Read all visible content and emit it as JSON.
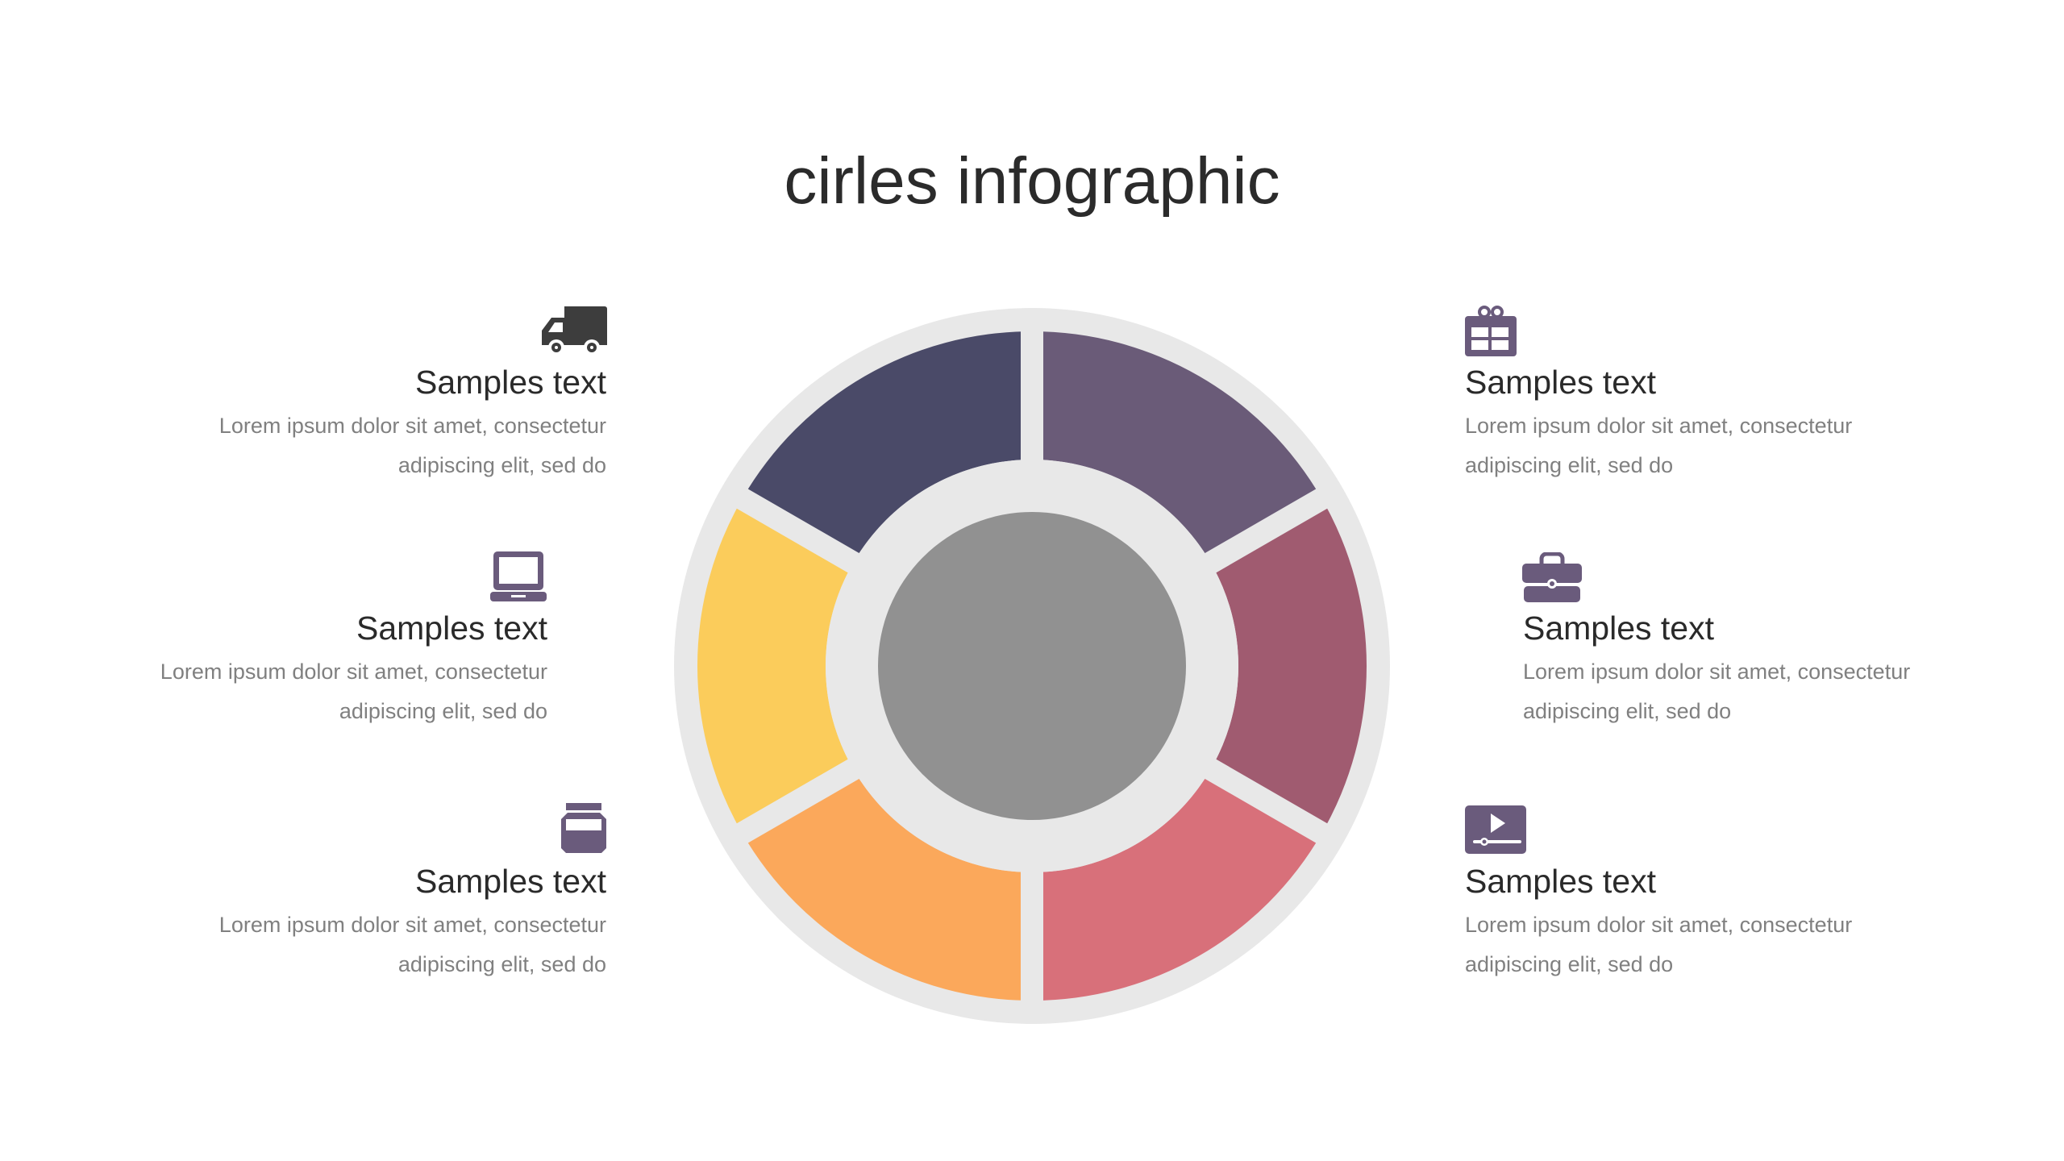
{
  "title": "cirles infographic",
  "colors": {
    "ring": "#e8e8e8",
    "center": "#919191",
    "icon": "#6a5b7c",
    "truck_icon": "#3d3d3d"
  },
  "segments": [
    {
      "name": "top-right",
      "color": "#6a5b78"
    },
    {
      "name": "right",
      "color": "#a05b70"
    },
    {
      "name": "bottom-right",
      "color": "#d8707a"
    },
    {
      "name": "bottom-left",
      "color": "#fba85b"
    },
    {
      "name": "left",
      "color": "#fbcc5b"
    },
    {
      "name": "top-left",
      "color": "#4a4a68"
    }
  ],
  "items": [
    {
      "icon": "truck-icon",
      "heading": "Samples text",
      "line1": "Lorem ipsum dolor sit amet, consectetur",
      "line2": "adipiscing elit, sed do"
    },
    {
      "icon": "laptop-icon",
      "heading": "Samples text",
      "line1": "Lorem ipsum dolor sit amet, consectetur",
      "line2": "adipiscing elit, sed do"
    },
    {
      "icon": "jar-icon",
      "heading": "Samples text",
      "line1": "Lorem ipsum dolor sit amet, consectetur",
      "line2": "adipiscing elit, sed do"
    },
    {
      "icon": "gift-icon",
      "heading": "Samples text",
      "line1": "Lorem ipsum dolor sit amet, consectetur",
      "line2": "adipiscing elit, sed do"
    },
    {
      "icon": "briefcase-icon",
      "heading": "Samples text",
      "line1": "Lorem ipsum dolor sit amet, consectetur",
      "line2": "adipiscing elit, sed do"
    },
    {
      "icon": "video-player-icon",
      "heading": "Samples text",
      "line1": "Lorem ipsum dolor sit amet, consectetur",
      "line2": "adipiscing elit, sed do"
    }
  ]
}
